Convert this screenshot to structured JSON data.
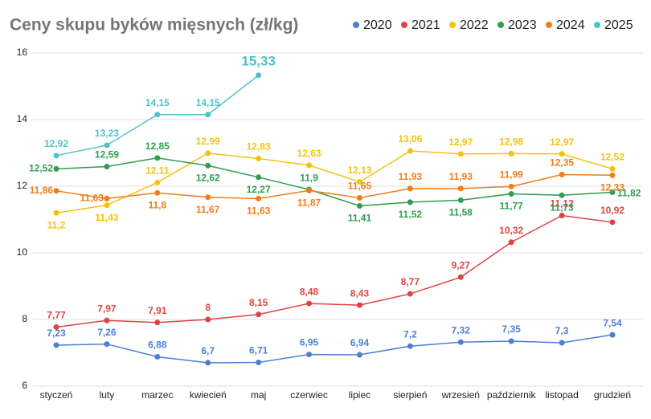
{
  "chart_data": {
    "type": "line",
    "title": "Ceny skupu byków mięsnych (zł/kg)",
    "categories": [
      "styczeń",
      "luty",
      "marzec",
      "kwiecień",
      "maj",
      "czerwiec",
      "lipiec",
      "sierpień",
      "wrzesień",
      "październik",
      "listopad",
      "grudzień"
    ],
    "ylim": [
      6,
      16
    ],
    "yticks": [
      6,
      8,
      10,
      12,
      14,
      16
    ],
    "grid": true,
    "legend": "top-right",
    "series": [
      {
        "name": "2020",
        "color": "#4a7fd4",
        "values": [
          7.23,
          7.26,
          6.88,
          6.7,
          6.71,
          6.95,
          6.94,
          7.2,
          7.32,
          7.35,
          7.3,
          7.54
        ],
        "value_labels": [
          "7,23",
          "7,26",
          "6,88",
          "6,7",
          "6,71",
          "6,95",
          "6,94",
          "7,2",
          "7,32",
          "7,35",
          "7,3",
          "7,54"
        ]
      },
      {
        "name": "2021",
        "color": "#e04343",
        "values": [
          7.77,
          7.97,
          7.91,
          8,
          8.15,
          8.48,
          8.43,
          8.77,
          9.27,
          10.32,
          11.12,
          10.92
        ],
        "value_labels": [
          "7,77",
          "7,97",
          "7,91",
          "8",
          "8,15",
          "8,48",
          "8,43",
          "8,77",
          "9,27",
          "10,32",
          "11,12",
          "10,92"
        ]
      },
      {
        "name": "2022",
        "color": "#f4c20d",
        "values": [
          11.2,
          11.43,
          12.11,
          12.99,
          12.83,
          12.63,
          12.13,
          13.06,
          12.97,
          12.98,
          12.97,
          12.52
        ],
        "value_labels": [
          "11,2",
          "11,43",
          "12,11",
          "12,99",
          "12,83",
          "12,63",
          "12,13",
          "13,06",
          "12,97",
          "12,98",
          "12,97",
          "12,52"
        ]
      },
      {
        "name": "2023",
        "color": "#2e9e4f",
        "values": [
          12.52,
          12.59,
          12.85,
          12.62,
          12.27,
          11.9,
          11.41,
          11.52,
          11.58,
          11.77,
          11.73,
          11.82
        ],
        "value_labels": [
          "12,52",
          "12,59",
          "12,85",
          "12,62",
          "12,27",
          "11,9",
          "11,41",
          "11,52",
          "11,58",
          "11,77",
          "11,73",
          "11,82"
        ]
      },
      {
        "name": "2024",
        "color": "#f07d1a",
        "values": [
          11.86,
          11.63,
          11.8,
          11.67,
          11.63,
          11.87,
          11.65,
          11.93,
          11.93,
          11.99,
          12.35,
          12.33
        ],
        "value_labels": [
          "11,86",
          "11,63",
          "11,8",
          "11,67",
          "11,63",
          "11,87",
          "11,65",
          "11,93",
          "11,93",
          "11,99",
          "12,35",
          "12,33"
        ]
      },
      {
        "name": "2025",
        "color": "#4cc3c8",
        "values": [
          12.92,
          13.23,
          14.15,
          14.15,
          15.33,
          null,
          null,
          null,
          null,
          null,
          null,
          null
        ],
        "value_labels": [
          "12,92",
          "13,23",
          "14,15",
          "14,15",
          "15,33",
          null,
          null,
          null,
          null,
          null,
          null,
          null
        ]
      }
    ]
  }
}
